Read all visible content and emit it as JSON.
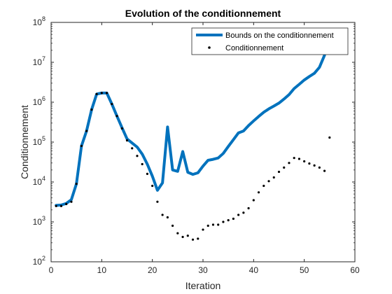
{
  "chart_data": {
    "type": "line",
    "title": "Evolution of the conditionnement",
    "xlabel": "Iteration",
    "ylabel": "Conditionnement",
    "xlim": [
      0,
      60
    ],
    "ylim": [
      100,
      100000000
    ],
    "yscale": "log",
    "grid": false,
    "legend_position": "top-right",
    "x_ticks": [
      0,
      10,
      20,
      30,
      40,
      50,
      60
    ],
    "y_ticks": [
      {
        "base": "10",
        "exp": "2",
        "value": 100
      },
      {
        "base": "10",
        "exp": "3",
        "value": 1000
      },
      {
        "base": "10",
        "exp": "4",
        "value": 10000
      },
      {
        "base": "10",
        "exp": "5",
        "value": 100000
      },
      {
        "base": "10",
        "exp": "6",
        "value": 1000000
      },
      {
        "base": "10",
        "exp": "7",
        "value": 10000000
      },
      {
        "base": "10",
        "exp": "8",
        "value": 100000000
      }
    ],
    "series": [
      {
        "name": "Bounds on the conditionnement",
        "style": "solid-line",
        "color": "#0072BD",
        "x": [
          1,
          2,
          3,
          4,
          5,
          6,
          7,
          8,
          9,
          10,
          11,
          12,
          13,
          14,
          15,
          16,
          17,
          18,
          19,
          20,
          21,
          22,
          23,
          24,
          25,
          26,
          27,
          28,
          29,
          30,
          31,
          32,
          33,
          34,
          35,
          36,
          37,
          38,
          39,
          40,
          41,
          42,
          43,
          44,
          45,
          46,
          47,
          48,
          49,
          50,
          51,
          52,
          53,
          54
        ],
        "y": [
          2600,
          2650,
          2900,
          3600,
          9000,
          80000,
          190000,
          650000,
          1600000,
          1700000,
          1700000,
          900000,
          450000,
          230000,
          120000,
          95000,
          75000,
          50000,
          28000,
          14000,
          6200,
          9500,
          240000,
          20000,
          18500,
          58000,
          17500,
          15500,
          17000,
          25000,
          35000,
          37000,
          40000,
          52000,
          78000,
          115000,
          170000,
          190000,
          260000,
          340000,
          440000,
          560000,
          680000,
          800000,
          950000,
          1200000,
          1550000,
          2200000,
          2800000,
          3600000,
          4400000,
          5300000,
          7500000,
          15000000
        ]
      },
      {
        "name": "Conditionnement",
        "style": "dots",
        "color": "#000000",
        "x": [
          1,
          2,
          3,
          4,
          5,
          6,
          7,
          8,
          9,
          10,
          11,
          12,
          13,
          14,
          15,
          16,
          17,
          18,
          19,
          20,
          21,
          22,
          23,
          24,
          25,
          26,
          27,
          28,
          29,
          30,
          31,
          32,
          33,
          34,
          35,
          36,
          37,
          38,
          39,
          40,
          41,
          42,
          43,
          44,
          45,
          46,
          47,
          48,
          49,
          50,
          51,
          52,
          53,
          54,
          55
        ],
        "y": [
          2500,
          2500,
          2800,
          3200,
          9000,
          80000,
          190000,
          650000,
          1600000,
          1700000,
          1700000,
          900000,
          450000,
          220000,
          110000,
          70000,
          45000,
          28000,
          16000,
          8000,
          3200,
          1500,
          1300,
          800,
          520,
          420,
          450,
          360,
          380,
          640,
          800,
          850,
          850,
          1000,
          1100,
          1200,
          1500,
          1700,
          2200,
          3500,
          5500,
          8000,
          10500,
          13000,
          18000,
          23000,
          30000,
          40000,
          38000,
          33000,
          29000,
          26000,
          23000,
          19000,
          130000
        ]
      }
    ]
  }
}
